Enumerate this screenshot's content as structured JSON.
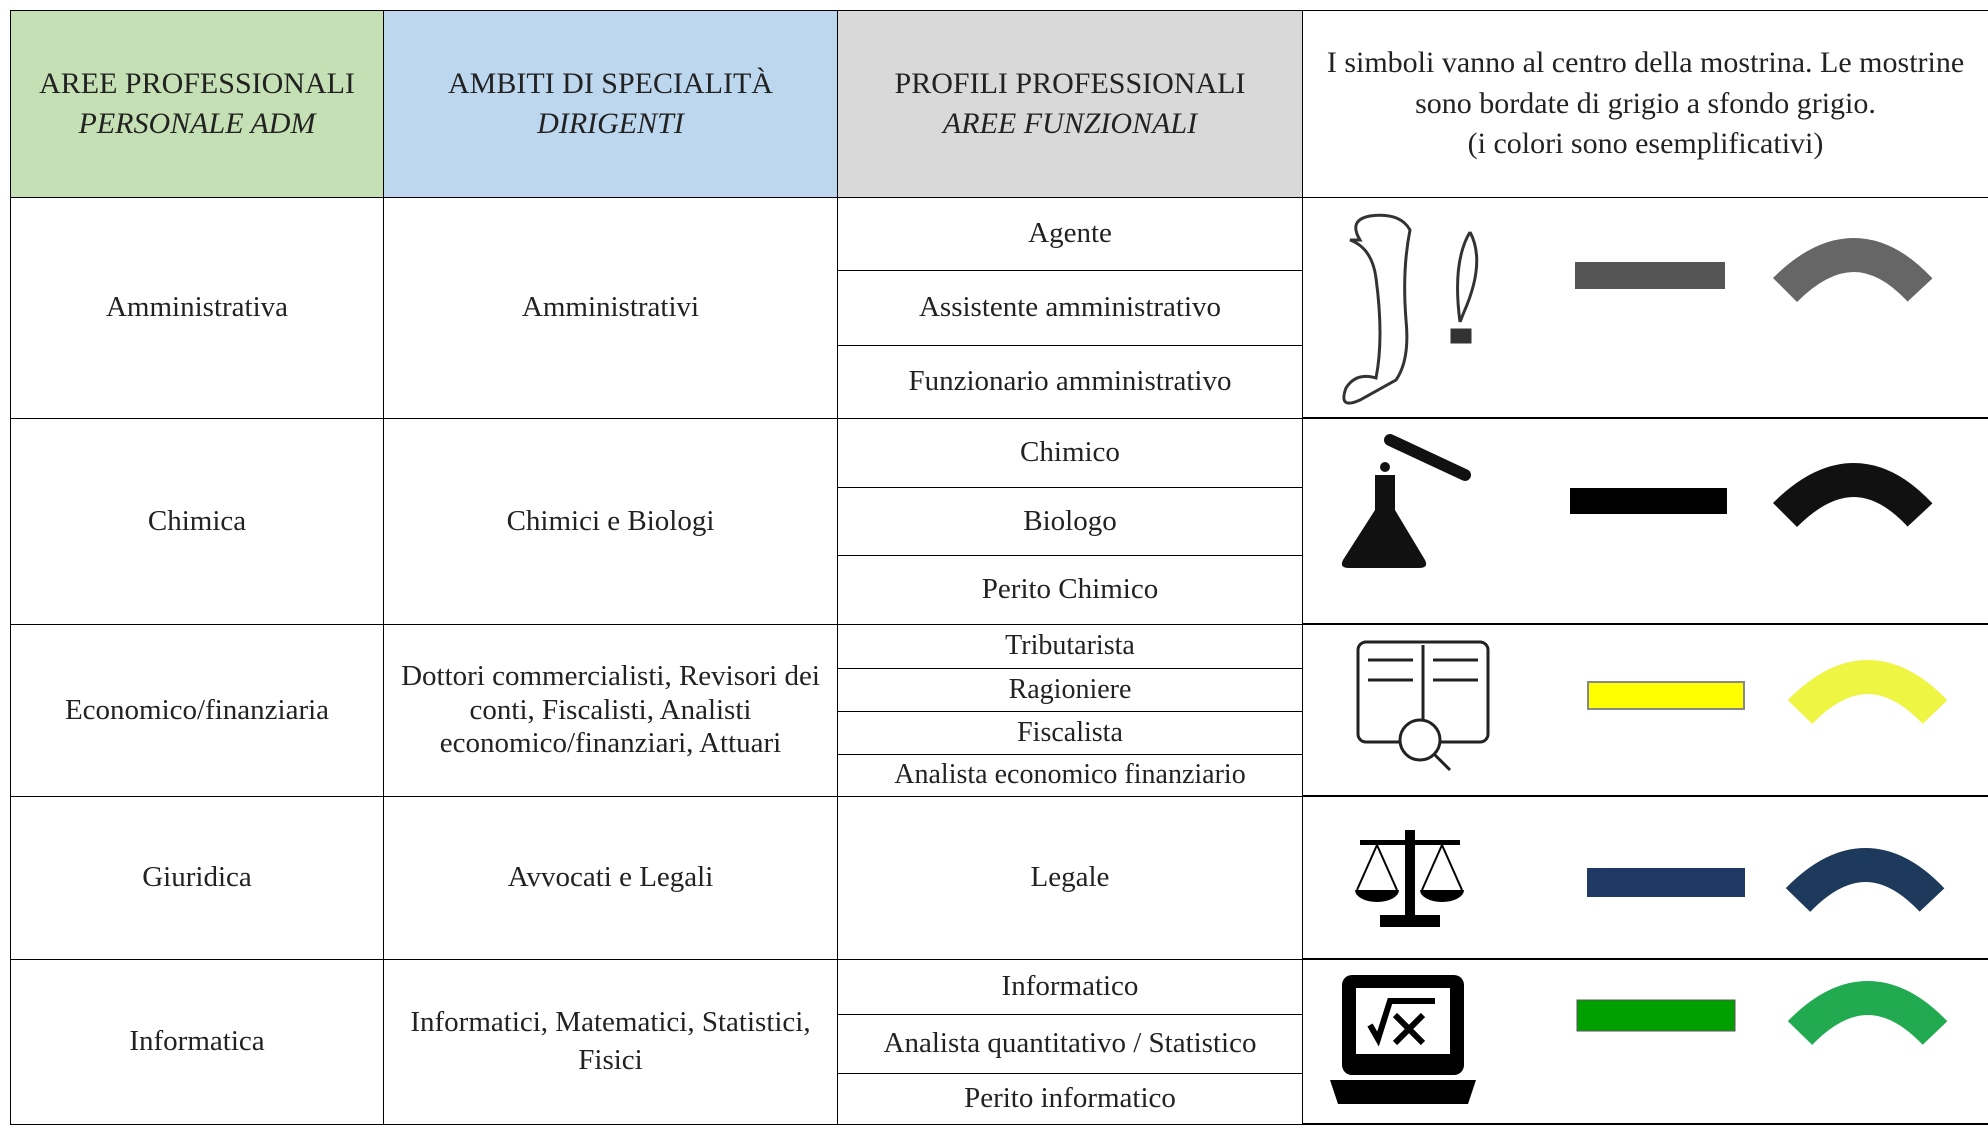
{
  "header": {
    "col1": {
      "title": "AREE PROFESSIONALI",
      "subtitle": "PERSONALE ADM"
    },
    "col2": {
      "title": "AMBITI DI SPECIALITÀ",
      "subtitle": "DIRIGENTI"
    },
    "col3": {
      "title": "PROFILI PROFESSIONALI",
      "subtitle": "AREE FUNZIONALI"
    },
    "col4": {
      "note": "I simboli vanno al centro della mostrina. Le mostrine sono bordate di grigio a sfondo grigio.",
      "note_sub": "(i colori sono esemplificativi)"
    }
  },
  "rows": [
    {
      "area": "Amministrativa",
      "ambiti": "Amministrativi",
      "profili": [
        "Agente",
        "Assistente amministrativo",
        "Funzionario amministrativo"
      ]
    },
    {
      "area": "Chimica",
      "ambiti": "Chimici e Biologi",
      "profili": [
        "Chimico",
        "Biologo",
        "Perito Chimico"
      ]
    },
    {
      "area": "Economico/finanziaria",
      "ambiti": "Dottori commercialisti, Revisori dei conti, Fiscalisti, Analisti economico/finanziari, Attuari",
      "profili": [
        "Tributarista",
        "Ragioniere",
        "Fiscalista",
        "Analista economico finanziario"
      ]
    },
    {
      "area": "Giuridica",
      "ambiti": "Avvocati e Legali",
      "profili": [
        "Legale"
      ]
    },
    {
      "area": "Informatica",
      "ambiti": "Informatici, Matematici, Statistici, Fisici",
      "profili": [
        "Informatico",
        "Analista quantitativo / Statistico",
        "Perito informatico"
      ]
    }
  ]
}
